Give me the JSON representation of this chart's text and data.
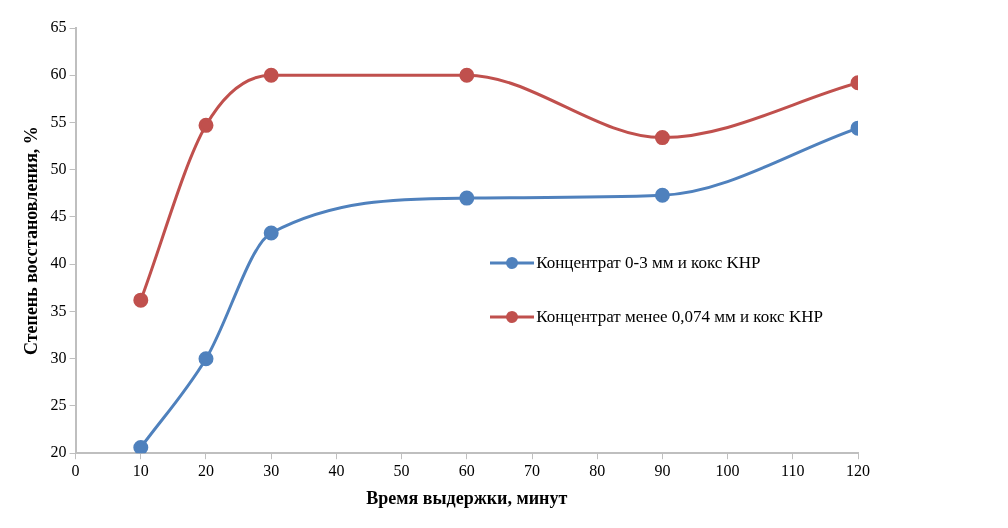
{
  "chart_data": {
    "type": "line",
    "xlabel": "Время выдержки, минут",
    "ylabel": "Степень восстановления, %",
    "x": [
      10,
      20,
      30,
      60,
      90,
      120
    ],
    "series": [
      {
        "name": "Концентрат 0-3  мм и кокс KHP",
        "color": "#4f81bd",
        "values": [
          20.6,
          30,
          43.3,
          47,
          47.3,
          54.4
        ]
      },
      {
        "name": "Концентрат менее  0,074  мм и кокс KHP",
        "color": "#c0504d",
        "values": [
          36.2,
          54.7,
          60,
          60,
          53.4,
          59.2
        ]
      }
    ],
    "xlim": [
      0,
      120
    ],
    "xticks": [
      0,
      10,
      20,
      30,
      40,
      50,
      60,
      70,
      80,
      90,
      100,
      110,
      120
    ],
    "ylim": [
      20,
      65
    ],
    "yticks": [
      20,
      25,
      30,
      35,
      40,
      45,
      50,
      55,
      60,
      65
    ],
    "grid": false,
    "legend": "right",
    "marker": "circle",
    "line_style": "solid"
  }
}
